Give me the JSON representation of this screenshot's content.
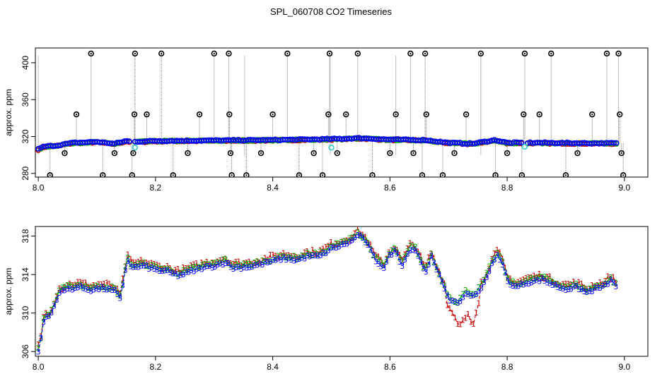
{
  "page_title": "SPL_060708  CO2 Timeseries",
  "chart_data": [
    {
      "type": "scatter",
      "title": "",
      "xlabel": "",
      "ylabel": "approx. ppm",
      "xlim": [
        7.995,
        9.04
      ],
      "ylim": [
        276,
        416
      ],
      "x_ticks": [
        "8.0",
        "8.2",
        "8.4",
        "8.6",
        "8.8",
        "9.0"
      ],
      "y_ticks": [
        "280",
        "320",
        "360",
        "400"
      ],
      "colors": {
        "series_a": "#0000ff",
        "series_b": "#00aa00",
        "series_c": "#cc0000",
        "outliers": "#000000",
        "flagged": "#33cccc",
        "spikes": "#777777"
      },
      "baseline": [
        [
          8.0,
          306
        ],
        [
          8.01,
          309
        ],
        [
          8.03,
          310
        ],
        [
          8.06,
          313
        ],
        [
          8.1,
          314
        ],
        [
          8.13,
          312
        ],
        [
          8.15,
          315
        ],
        [
          8.16,
          314
        ],
        [
          8.2,
          315
        ],
        [
          8.3,
          315.5
        ],
        [
          8.4,
          316
        ],
        [
          8.5,
          317
        ],
        [
          8.55,
          318
        ],
        [
          8.6,
          316.5
        ],
        [
          8.65,
          316
        ],
        [
          8.66,
          316
        ],
        [
          8.7,
          313
        ],
        [
          8.74,
          312
        ],
        [
          8.78,
          316
        ],
        [
          8.8,
          313
        ],
        [
          8.85,
          313
        ],
        [
          8.95,
          312.5
        ],
        [
          8.99,
          312.5
        ]
      ],
      "outliers": [
        [
          8.02,
          278
        ],
        [
          8.045,
          302
        ],
        [
          8.065,
          344
        ],
        [
          8.09,
          410
        ],
        [
          8.11,
          278
        ],
        [
          8.13,
          302
        ],
        [
          8.16,
          278
        ],
        [
          8.162,
          302
        ],
        [
          8.164,
          344
        ],
        [
          8.165,
          410
        ],
        [
          8.185,
          344
        ],
        [
          8.21,
          410
        ],
        [
          8.23,
          278
        ],
        [
          8.255,
          302
        ],
        [
          8.275,
          344
        ],
        [
          8.3,
          410
        ],
        [
          8.325,
          410
        ],
        [
          8.326,
          344
        ],
        [
          8.328,
          302
        ],
        [
          8.33,
          278
        ],
        [
          8.355,
          278
        ],
        [
          8.38,
          302
        ],
        [
          8.4,
          344
        ],
        [
          8.425,
          410
        ],
        [
          8.445,
          278
        ],
        [
          8.47,
          302
        ],
        [
          8.485,
          278
        ],
        [
          8.495,
          344
        ],
        [
          8.497,
          410
        ],
        [
          8.51,
          302
        ],
        [
          8.525,
          344
        ],
        [
          8.545,
          410
        ],
        [
          8.57,
          278
        ],
        [
          8.6,
          302
        ],
        [
          8.61,
          344
        ],
        [
          8.635,
          410
        ],
        [
          8.64,
          302
        ],
        [
          8.655,
          278
        ],
        [
          8.66,
          410
        ],
        [
          8.662,
          344
        ],
        [
          8.69,
          278
        ],
        [
          8.71,
          302
        ],
        [
          8.73,
          344
        ],
        [
          8.755,
          410
        ],
        [
          8.78,
          278
        ],
        [
          8.8,
          302
        ],
        [
          8.825,
          278
        ],
        [
          8.828,
          344
        ],
        [
          8.83,
          410
        ],
        [
          8.855,
          344
        ],
        [
          8.875,
          410
        ],
        [
          8.9,
          278
        ],
        [
          8.92,
          302
        ],
        [
          8.945,
          344
        ],
        [
          8.97,
          410
        ],
        [
          8.99,
          410
        ],
        [
          8.992,
          344
        ],
        [
          8.995,
          302
        ],
        [
          8.998,
          278
        ]
      ],
      "flagged": [
        [
          8.165,
          308
        ],
        [
          8.5,
          308
        ],
        [
          8.83,
          309
        ]
      ]
    },
    {
      "type": "line",
      "title": "",
      "xlabel": "",
      "ylabel": "approx. ppm",
      "xlim": [
        7.995,
        9.04
      ],
      "ylim": [
        305.5,
        319
      ],
      "x_ticks": [
        "8.0",
        "8.2",
        "8.4",
        "8.6",
        "8.8",
        "9.0"
      ],
      "y_ticks": [
        "306",
        "310",
        "314",
        "318"
      ],
      "series_names": [
        "1",
        "2",
        "3"
      ],
      "anchors": [
        [
          8.0,
          306.2
        ],
        [
          8.005,
          307.5
        ],
        [
          8.01,
          309.6
        ],
        [
          8.02,
          309.8
        ],
        [
          8.025,
          310.5
        ],
        [
          8.035,
          312.2
        ],
        [
          8.05,
          312.6
        ],
        [
          8.07,
          312.8
        ],
        [
          8.09,
          312.5
        ],
        [
          8.11,
          312.7
        ],
        [
          8.13,
          312.4
        ],
        [
          8.14,
          311.5
        ],
        [
          8.148,
          314.5
        ],
        [
          8.152,
          315.6
        ],
        [
          8.16,
          314.8
        ],
        [
          8.18,
          315.0
        ],
        [
          8.2,
          314.6
        ],
        [
          8.22,
          314.4
        ],
        [
          8.24,
          314.0
        ],
        [
          8.26,
          314.4
        ],
        [
          8.28,
          314.8
        ],
        [
          8.3,
          315.0
        ],
        [
          8.32,
          315.4
        ],
        [
          8.33,
          314.8
        ],
        [
          8.36,
          314.9
        ],
        [
          8.38,
          315.2
        ],
        [
          8.4,
          315.5
        ],
        [
          8.42,
          315.8
        ],
        [
          8.44,
          315.6
        ],
        [
          8.46,
          316.0
        ],
        [
          8.48,
          316.0
        ],
        [
          8.5,
          316.8
        ],
        [
          8.52,
          317.2
        ],
        [
          8.535,
          317.6
        ],
        [
          8.545,
          318.3
        ],
        [
          8.56,
          317.4
        ],
        [
          8.575,
          315.6
        ],
        [
          8.59,
          314.8
        ],
        [
          8.6,
          316.2
        ],
        [
          8.61,
          316.6
        ],
        [
          8.62,
          315.0
        ],
        [
          8.635,
          316.8
        ],
        [
          8.645,
          316.6
        ],
        [
          8.66,
          314.2
        ],
        [
          8.67,
          316.0
        ],
        [
          8.68,
          314.5
        ],
        [
          8.69,
          313.2
        ],
        [
          8.7,
          311.6
        ],
        [
          8.715,
          311.0
        ],
        [
          8.73,
          312.2
        ],
        [
          8.745,
          311.8
        ],
        [
          8.76,
          313.2
        ],
        [
          8.775,
          315.3
        ],
        [
          8.785,
          316.2
        ],
        [
          8.795,
          314.6
        ],
        [
          8.8,
          313.4
        ],
        [
          8.815,
          312.8
        ],
        [
          8.83,
          313.2
        ],
        [
          8.86,
          313.6
        ],
        [
          8.88,
          313.0
        ],
        [
          8.9,
          312.6
        ],
        [
          8.92,
          312.8
        ],
        [
          8.935,
          312.2
        ],
        [
          8.95,
          312.6
        ],
        [
          8.97,
          313.0
        ],
        [
          8.975,
          313.6
        ],
        [
          8.985,
          312.9
        ]
      ],
      "series1_dips": [
        [
          8.7,
          310.8
        ],
        [
          8.71,
          309.6
        ],
        [
          8.72,
          308.8
        ],
        [
          8.73,
          309.4
        ],
        [
          8.735,
          310.2
        ],
        [
          8.74,
          308.5
        ],
        [
          8.745,
          309.8
        ],
        [
          8.75,
          311.0
        ]
      ]
    }
  ]
}
